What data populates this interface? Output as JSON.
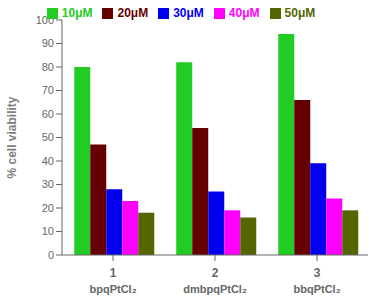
{
  "chart_data": {
    "type": "bar",
    "categories": [
      "1",
      "2",
      "3"
    ],
    "annotations": [
      {
        "x": "1",
        "text": "bpqPtCl₂"
      },
      {
        "x": "2",
        "text": "dmbpqPtCl₂"
      },
      {
        "x": "3",
        "text": "bbqPtCl₂"
      }
    ],
    "series": [
      {
        "name": "10μM",
        "color": "#22cc22",
        "values": [
          80,
          82,
          94
        ]
      },
      {
        "name": "20μM",
        "color": "#660000",
        "values": [
          47,
          54,
          66
        ]
      },
      {
        "name": "30μM",
        "color": "#0000ee",
        "values": [
          28,
          27,
          39
        ]
      },
      {
        "name": "40μM",
        "color": "#ff00ff",
        "values": [
          23,
          19,
          24
        ]
      },
      {
        "name": "50μM",
        "color": "#556600",
        "values": [
          18,
          16,
          19
        ]
      }
    ],
    "ylabel": "% cell viability",
    "ylim": [
      0,
      100
    ],
    "yticks": [
      0,
      10,
      20,
      30,
      40,
      50,
      60,
      70,
      80,
      90,
      100
    ],
    "grid": false,
    "legend": "top"
  }
}
